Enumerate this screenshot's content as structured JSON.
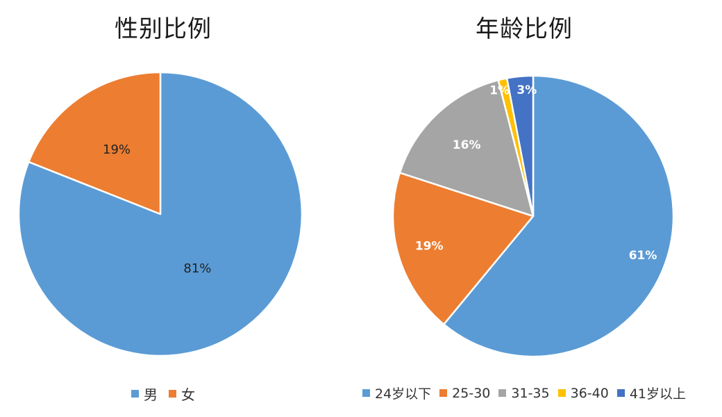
{
  "chart_data": [
    {
      "type": "pie",
      "title": "性别比例",
      "categories": [
        "男",
        "女"
      ],
      "values": [
        81,
        19
      ],
      "labels": [
        "81%",
        "19%"
      ],
      "colors": [
        "#5b9bd5",
        "#ed7d31"
      ],
      "legend": "bottom"
    },
    {
      "type": "pie",
      "title": "年龄比例",
      "categories": [
        "24岁以下",
        "25-30",
        "31-35",
        "36-40",
        "41岁以上"
      ],
      "values": [
        61,
        19,
        16,
        1,
        3
      ],
      "labels": [
        "61%",
        "19%",
        "16%",
        "1%",
        "3%"
      ],
      "colors": [
        "#5b9bd5",
        "#ed7d31",
        "#a5a5a5",
        "#ffc000",
        "#4472c4"
      ],
      "legend": "bottom"
    }
  ]
}
